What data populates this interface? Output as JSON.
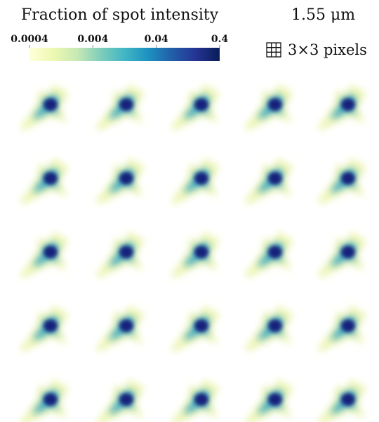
{
  "colorbar": {
    "title": "Fraction of spot intensity",
    "scale": "log",
    "lim": [
      0.0004,
      0.4
    ],
    "ticks": [
      0.0004,
      0.004,
      0.04,
      0.4
    ],
    "colors": [
      "#ffffd9",
      "#edf8b1",
      "#c7e9b4",
      "#7fcdbb",
      "#41b6c4",
      "#1d91c0",
      "#225ea8",
      "#253494",
      "#081d58"
    ]
  },
  "scale_label": "1.55 μm",
  "pixel_legend": "3×3 pixels"
}
